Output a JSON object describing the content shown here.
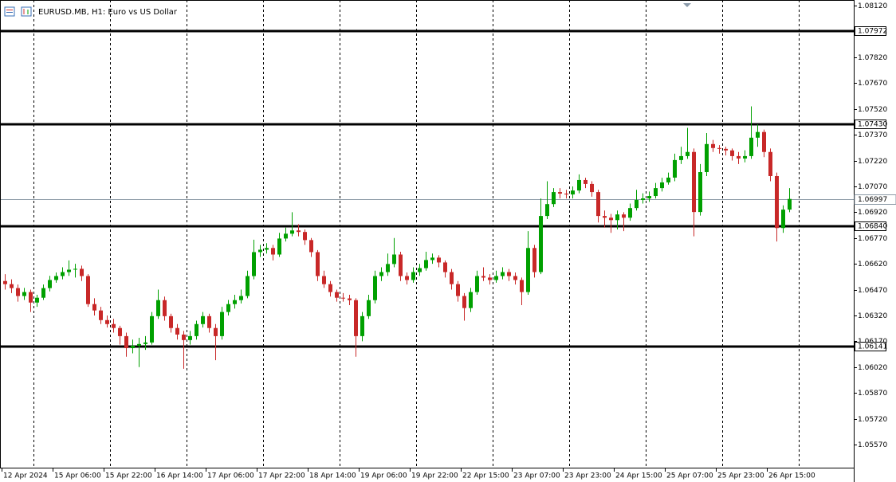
{
  "chart_data": {
    "type": "candlestick",
    "title": "EURUSD.MB, H1:  Euro vs US Dollar",
    "bull_color": "#00a000",
    "bear_color": "#c82828",
    "ylim": [
      1.05431,
      1.08153
    ],
    "yticks": [
      {
        "value": 1.0812,
        "label": "1.08120"
      },
      {
        "value": 1.0782,
        "label": "1.07820"
      },
      {
        "value": 1.0767,
        "label": "1.07670"
      },
      {
        "value": 1.0752,
        "label": "1.07520"
      },
      {
        "value": 1.0737,
        "label": "1.07370"
      },
      {
        "value": 1.0722,
        "label": "1.07220"
      },
      {
        "value": 1.0707,
        "label": "1.07070"
      },
      {
        "value": 1.0692,
        "label": "1.06920"
      },
      {
        "value": 1.0677,
        "label": "1.06770"
      },
      {
        "value": 1.0662,
        "label": "1.06620"
      },
      {
        "value": 1.0647,
        "label": "1.06470"
      },
      {
        "value": 1.0632,
        "label": "1.06320"
      },
      {
        "value": 1.0617,
        "label": "1.06170"
      },
      {
        "value": 1.0602,
        "label": "1.06020"
      },
      {
        "value": 1.0587,
        "label": "1.05870"
      },
      {
        "value": 1.0572,
        "label": "1.05720"
      },
      {
        "value": 1.0557,
        "label": "1.05570"
      }
    ],
    "levels": [
      {
        "value": 1.07972,
        "label": "1.07972"
      },
      {
        "value": 1.0743,
        "label": "1.07430"
      },
      {
        "value": 1.0684,
        "label": "1.06840"
      },
      {
        "value": 1.06141,
        "label": "1.06141"
      }
    ],
    "current_price": {
      "value": 1.06997,
      "label": "1.06997"
    },
    "categories": [
      "12 Apr 2024",
      null,
      null,
      null,
      null,
      null,
      null,
      null,
      "15 Apr 06:00",
      null,
      null,
      null,
      null,
      null,
      null,
      null,
      "15 Apr 22:00",
      null,
      null,
      null,
      null,
      null,
      null,
      null,
      "16 Apr 14:00",
      null,
      null,
      null,
      null,
      null,
      null,
      null,
      "17 Apr 06:00",
      null,
      null,
      null,
      null,
      null,
      null,
      null,
      "17 Apr 22:00",
      null,
      null,
      null,
      null,
      null,
      null,
      null,
      "18 Apr 14:00",
      null,
      null,
      null,
      null,
      null,
      null,
      null,
      "19 Apr 06:00",
      null,
      null,
      null,
      null,
      null,
      null,
      null,
      "19 Apr 22:00",
      null,
      null,
      null,
      null,
      null,
      null,
      null,
      "22 Apr 15:00",
      null,
      null,
      null,
      null,
      null,
      null,
      null,
      "23 Apr 07:00",
      null,
      null,
      null,
      null,
      null,
      null,
      null,
      "23 Apr 23:00",
      null,
      null,
      null,
      null,
      null,
      null,
      null,
      "24 Apr 15:00",
      null,
      null,
      null,
      null,
      null,
      null,
      null,
      "25 Apr 07:00",
      null,
      null,
      null,
      null,
      null,
      null,
      null,
      "25 Apr 23:00",
      null,
      null,
      null,
      null,
      null,
      null,
      null,
      "26 Apr 15:00",
      null,
      null,
      null
    ],
    "ohlc": [
      [
        1.0652,
        1.0656,
        1.0647,
        1.06502
      ],
      [
        1.06502,
        1.0653,
        1.0645,
        1.06479
      ],
      [
        1.06479,
        1.065,
        1.064,
        1.06433
      ],
      [
        1.06433,
        1.0648,
        1.0641,
        1.06456
      ],
      [
        1.06456,
        1.0647,
        1.0634,
        1.06395
      ],
      [
        1.06395,
        1.0644,
        1.0637,
        1.06423
      ],
      [
        1.06423,
        1.065,
        1.0641,
        1.06479
      ],
      [
        1.06479,
        1.0655,
        1.0646,
        1.06526
      ],
      [
        1.06526,
        1.0657,
        1.0651,
        1.06549
      ],
      [
        1.06549,
        1.066,
        1.0653,
        1.06572
      ],
      [
        1.06572,
        1.0664,
        1.0655,
        1.06586
      ],
      [
        1.06586,
        1.0662,
        1.0654,
        1.06591
      ],
      [
        1.06591,
        1.0661,
        1.0652,
        1.06549
      ],
      [
        1.06549,
        1.0656,
        1.0637,
        1.06386
      ],
      [
        1.06386,
        1.0642,
        1.0632,
        1.06349
      ],
      [
        1.06349,
        1.0637,
        1.0627,
        1.06293
      ],
      [
        1.06293,
        1.0632,
        1.0625,
        1.0627
      ],
      [
        1.0627,
        1.063,
        1.0622,
        1.06247
      ],
      [
        1.06247,
        1.0626,
        1.0615,
        1.062
      ],
      [
        1.062,
        1.0622,
        1.0608,
        1.0613
      ],
      [
        1.0613,
        1.0618,
        1.061,
        1.06144
      ],
      [
        1.06144,
        1.0619,
        1.0602,
        1.06154
      ],
      [
        1.06154,
        1.062,
        1.0612,
        1.06163
      ],
      [
        1.06163,
        1.0634,
        1.0615,
        1.06316
      ],
      [
        1.06316,
        1.0647,
        1.063,
        1.06409
      ],
      [
        1.06409,
        1.0643,
        1.0629,
        1.06316
      ],
      [
        1.06316,
        1.0633,
        1.0622,
        1.06247
      ],
      [
        1.06247,
        1.0627,
        1.0618,
        1.06209
      ],
      [
        1.06209,
        1.0623,
        1.0601,
        1.06177
      ],
      [
        1.06177,
        1.0623,
        1.0615,
        1.062
      ],
      [
        1.062,
        1.0629,
        1.0618,
        1.0627
      ],
      [
        1.0627,
        1.0634,
        1.0625,
        1.06316
      ],
      [
        1.06316,
        1.0633,
        1.0622,
        1.06247
      ],
      [
        1.06247,
        1.0627,
        1.0606,
        1.062
      ],
      [
        1.062,
        1.0637,
        1.0618,
        1.0634
      ],
      [
        1.0634,
        1.0641,
        1.0632,
        1.06386
      ],
      [
        1.06386,
        1.0644,
        1.0636,
        1.06409
      ],
      [
        1.06409,
        1.0647,
        1.0639,
        1.06433
      ],
      [
        1.06433,
        1.0658,
        1.0642,
        1.06549
      ],
      [
        1.06549,
        1.0676,
        1.0653,
        1.06688
      ],
      [
        1.06688,
        1.0673,
        1.0666,
        1.06702
      ],
      [
        1.06702,
        1.0674,
        1.0668,
        1.06712
      ],
      [
        1.06712,
        1.0673,
        1.0664,
        1.06674
      ],
      [
        1.06674,
        1.068,
        1.0666,
        1.06767
      ],
      [
        1.06767,
        1.0683,
        1.0675,
        1.06795
      ],
      [
        1.06795,
        1.0692,
        1.0678,
        1.06814
      ],
      [
        1.06814,
        1.0685,
        1.0678,
        1.06805
      ],
      [
        1.06805,
        1.0682,
        1.0673,
        1.06758
      ],
      [
        1.06758,
        1.0677,
        1.0666,
        1.06688
      ],
      [
        1.06688,
        1.067,
        1.0652,
        1.06549
      ],
      [
        1.06549,
        1.0658,
        1.0648,
        1.06502
      ],
      [
        1.06502,
        1.0652,
        1.0643,
        1.06456
      ],
      [
        1.06456,
        1.0647,
        1.064,
        1.06423
      ],
      [
        1.06423,
        1.0645,
        1.064,
        1.06419
      ],
      [
        1.06419,
        1.0644,
        1.0638,
        1.06409
      ],
      [
        1.06409,
        1.0642,
        1.0608,
        1.062
      ],
      [
        1.062,
        1.0634,
        1.0617,
        1.06316
      ],
      [
        1.06316,
        1.0644,
        1.063,
        1.06409
      ],
      [
        1.06409,
        1.0658,
        1.0639,
        1.06549
      ],
      [
        1.06549,
        1.066,
        1.0652,
        1.06572
      ],
      [
        1.06572,
        1.0668,
        1.0655,
        1.06619
      ],
      [
        1.06619,
        1.0677,
        1.066,
        1.06674
      ],
      [
        1.06674,
        1.0669,
        1.0652,
        1.06549
      ],
      [
        1.06549,
        1.0657,
        1.065,
        1.06526
      ],
      [
        1.06526,
        1.066,
        1.0651,
        1.06572
      ],
      [
        1.06572,
        1.0662,
        1.0655,
        1.06595
      ],
      [
        1.06595,
        1.0669,
        1.0658,
        1.06642
      ],
      [
        1.06642,
        1.0668,
        1.0662,
        1.06656
      ],
      [
        1.06656,
        1.0667,
        1.066,
        1.06628
      ],
      [
        1.06628,
        1.0664,
        1.0654,
        1.06572
      ],
      [
        1.06572,
        1.0659,
        1.0647,
        1.06502
      ],
      [
        1.06502,
        1.0652,
        1.064,
        1.06433
      ],
      [
        1.06433,
        1.0645,
        1.0629,
        1.06363
      ],
      [
        1.06363,
        1.0648,
        1.0634,
        1.06456
      ],
      [
        1.06456,
        1.0658,
        1.0644,
        1.06549
      ],
      [
        1.06549,
        1.066,
        1.0652,
        1.0654
      ],
      [
        1.0654,
        1.0656,
        1.065,
        1.06526
      ],
      [
        1.06526,
        1.0658,
        1.0651,
        1.06549
      ],
      [
        1.06549,
        1.066,
        1.0653,
        1.06572
      ],
      [
        1.06572,
        1.0659,
        1.0652,
        1.06549
      ],
      [
        1.06549,
        1.0657,
        1.065,
        1.06526
      ],
      [
        1.06526,
        1.0654,
        1.0638,
        1.06456
      ],
      [
        1.06456,
        1.0681,
        1.0644,
        1.06712
      ],
      [
        1.06712,
        1.0673,
        1.0654,
        1.06572
      ],
      [
        1.06572,
        1.07,
        1.0656,
        1.06898
      ],
      [
        1.06898,
        1.071,
        1.0688,
        1.06967
      ],
      [
        1.06967,
        1.0706,
        1.0695,
        1.07037
      ],
      [
        1.07037,
        1.0706,
        1.07,
        1.07028
      ],
      [
        1.07028,
        1.0705,
        1.07,
        1.07023
      ],
      [
        1.07023,
        1.0707,
        1.07,
        1.07046
      ],
      [
        1.07046,
        1.0714,
        1.0703,
        1.07107
      ],
      [
        1.07107,
        1.0712,
        1.0706,
        1.07084
      ],
      [
        1.07084,
        1.071,
        1.0701,
        1.07037
      ],
      [
        1.07037,
        1.0705,
        1.0686,
        1.06898
      ],
      [
        1.06898,
        1.0693,
        1.0683,
        1.06888
      ],
      [
        1.06888,
        1.0691,
        1.068,
        1.06874
      ],
      [
        1.06874,
        1.0693,
        1.0682,
        1.06907
      ],
      [
        1.06907,
        1.0692,
        1.0681,
        1.06888
      ],
      [
        1.06888,
        1.0697,
        1.0687,
        1.06944
      ],
      [
        1.06944,
        1.0705,
        1.0693,
        1.06991
      ],
      [
        1.06991,
        1.0703,
        1.0697,
        1.07
      ],
      [
        1.07,
        1.0704,
        1.0698,
        1.07014
      ],
      [
        1.07014,
        1.0709,
        1.07,
        1.0706
      ],
      [
        1.0706,
        1.0712,
        1.0704,
        1.07093
      ],
      [
        1.07093,
        1.0715,
        1.0708,
        1.07121
      ],
      [
        1.07121,
        1.0726,
        1.071,
        1.07223
      ],
      [
        1.07223,
        1.073,
        1.072,
        1.07246
      ],
      [
        1.07246,
        1.0741,
        1.0723,
        1.0727
      ],
      [
        1.0727,
        1.0729,
        1.0678,
        1.06921
      ],
      [
        1.06921,
        1.072,
        1.069,
        1.07153
      ],
      [
        1.07153,
        1.0738,
        1.0713,
        1.07316
      ],
      [
        1.07316,
        1.0734,
        1.0727,
        1.07293
      ],
      [
        1.07293,
        1.0731,
        1.0726,
        1.07288
      ],
      [
        1.07288,
        1.073,
        1.0725,
        1.07279
      ],
      [
        1.07279,
        1.0729,
        1.0722,
        1.07246
      ],
      [
        1.07246,
        1.0727,
        1.072,
        1.07232
      ],
      [
        1.07232,
        1.0728,
        1.0721,
        1.07246
      ],
      [
        1.07246,
        1.07535,
        1.0723,
        1.07353
      ],
      [
        1.07353,
        1.0743,
        1.073,
        1.07386
      ],
      [
        1.07386,
        1.074,
        1.0724,
        1.0727
      ],
      [
        1.0727,
        1.0729,
        1.071,
        1.0713
      ],
      [
        1.0713,
        1.0715,
        1.0675,
        1.06828
      ],
      [
        1.06828,
        1.0696,
        1.068,
        1.06935
      ],
      [
        1.06935,
        1.0706,
        1.0692,
        1.06997
      ]
    ]
  }
}
